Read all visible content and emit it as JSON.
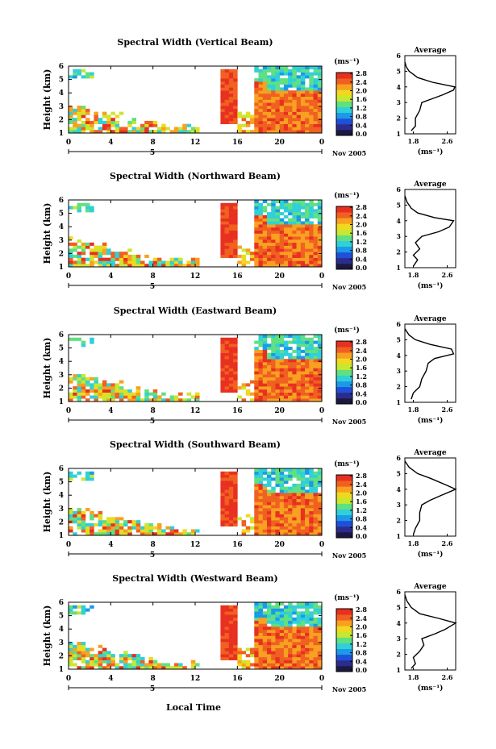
{
  "figure": {
    "colorbar_unit": "(ms⁻¹)",
    "avg_title": "Average",
    "avg_unit": "(ms⁻¹)",
    "date_label": "Nov 2005",
    "day_label": "5",
    "xlabel": "Local Time",
    "ylabel": "Height (km)"
  },
  "chart_data": [
    {
      "type": "heatmap",
      "title": "Spectral Width (Vertical Beam)",
      "ylabel": "Height (km)",
      "x_ticks": [
        "0",
        "4",
        "8",
        "12",
        "16",
        "20",
        "0"
      ],
      "xlim": [
        0,
        24
      ],
      "y_ticks": [
        "1",
        "2",
        "3",
        "4",
        "5",
        "6"
      ],
      "ylim": [
        1,
        6
      ],
      "colorbar": {
        "unit": "(ms⁻¹)",
        "ticks": [
          "0.0",
          "0.4",
          "0.8",
          "1.2",
          "1.6",
          "2.0",
          "2.4",
          "2.8"
        ],
        "range": [
          0,
          2.8
        ]
      },
      "average_profile": {
        "title": "Average",
        "x_ticks": [
          "1.8",
          "2.6"
        ],
        "xlim": [
          1.6,
          2.8
        ],
        "y_ticks": [
          "1",
          "2",
          "3",
          "4",
          "5",
          "6"
        ],
        "height": [
          1.2,
          1.5,
          2.0,
          2.5,
          3.0,
          3.3,
          3.5,
          3.8,
          4.0,
          4.3,
          4.6,
          5.0,
          5.3,
          5.6
        ],
        "value": [
          1.75,
          1.85,
          1.85,
          1.95,
          2.0,
          2.3,
          2.5,
          2.75,
          2.78,
          2.25,
          1.9,
          1.7,
          1.63,
          1.6
        ]
      }
    },
    {
      "type": "heatmap",
      "title": "Spectral Width (Northward Beam)",
      "ylabel": "Height (km)",
      "x_ticks": [
        "0",
        "4",
        "8",
        "12",
        "16",
        "20",
        "0"
      ],
      "xlim": [
        0,
        24
      ],
      "y_ticks": [
        "1",
        "2",
        "3",
        "4",
        "5",
        "6"
      ],
      "ylim": [
        1,
        6
      ],
      "colorbar": {
        "unit": "(ms⁻¹)",
        "ticks": [
          "0.0",
          "0.4",
          "0.8",
          "1.2",
          "1.6",
          "2.0",
          "2.4",
          "2.8"
        ],
        "range": [
          0,
          2.8
        ]
      },
      "average_profile": {
        "title": "Average",
        "x_ticks": [
          "1.8",
          "2.6"
        ],
        "xlim": [
          1.6,
          2.8
        ],
        "y_ticks": [
          "1",
          "2",
          "3",
          "4",
          "5",
          "6"
        ],
        "height": [
          1.1,
          1.5,
          1.8,
          2.2,
          2.6,
          3.0,
          3.3,
          3.6,
          4.0,
          4.2,
          4.5,
          4.8,
          5.2,
          5.6
        ],
        "value": [
          1.8,
          1.9,
          1.8,
          1.95,
          1.85,
          2.0,
          2.4,
          2.65,
          2.75,
          2.3,
          1.9,
          1.75,
          1.65,
          1.6
        ]
      }
    },
    {
      "type": "heatmap",
      "title": "Spectral Width (Eastward Beam)",
      "ylabel": "Height (km)",
      "x_ticks": [
        "0",
        "4",
        "8",
        "12",
        "16",
        "20",
        "0"
      ],
      "xlim": [
        0,
        24
      ],
      "y_ticks": [
        "1",
        "2",
        "3",
        "4",
        "5",
        "6"
      ],
      "ylim": [
        1,
        6
      ],
      "colorbar": {
        "unit": "(ms⁻¹)",
        "ticks": [
          "0.0",
          "0.4",
          "0.8",
          "1.2",
          "1.6",
          "2.0",
          "2.4",
          "2.8"
        ],
        "range": [
          0,
          2.8
        ]
      },
      "average_profile": {
        "title": "Average",
        "x_ticks": [
          "1.8",
          "2.6"
        ],
        "xlim": [
          1.6,
          2.8
        ],
        "y_ticks": [
          "1",
          "2",
          "3",
          "4",
          "5",
          "6"
        ],
        "height": [
          1.2,
          1.6,
          2.0,
          2.5,
          3.0,
          3.5,
          3.8,
          4.1,
          4.4,
          4.7,
          5.0,
          5.3,
          5.7
        ],
        "value": [
          1.75,
          1.8,
          1.95,
          2.0,
          2.1,
          2.15,
          2.3,
          2.75,
          2.7,
          2.2,
          1.85,
          1.7,
          1.6
        ]
      }
    },
    {
      "type": "heatmap",
      "title": "Spectral Width (Southward Beam)",
      "ylabel": "Height (km)",
      "x_ticks": [
        "0",
        "4",
        "8",
        "12",
        "16",
        "20",
        "0"
      ],
      "xlim": [
        0,
        24
      ],
      "y_ticks": [
        "1",
        "2",
        "3",
        "4",
        "5",
        "6"
      ],
      "ylim": [
        1,
        6
      ],
      "colorbar": {
        "unit": "(ms⁻¹)",
        "ticks": [
          "0.0",
          "0.4",
          "0.8",
          "1.2",
          "1.6",
          "2.0",
          "2.4",
          "2.8"
        ],
        "range": [
          0,
          2.8
        ]
      },
      "average_profile": {
        "title": "Average",
        "x_ticks": [
          "1.8",
          "2.6"
        ],
        "xlim": [
          1.6,
          2.8
        ],
        "y_ticks": [
          "1",
          "2",
          "3",
          "4",
          "5",
          "6"
        ],
        "height": [
          1.1,
          1.5,
          2.0,
          2.5,
          3.0,
          3.3,
          3.6,
          4.0,
          4.3,
          4.7,
          5.0,
          5.4,
          5.8
        ],
        "value": [
          1.8,
          1.85,
          1.95,
          1.95,
          2.0,
          2.2,
          2.45,
          2.8,
          2.55,
          2.2,
          1.9,
          1.7,
          1.6
        ]
      }
    },
    {
      "type": "heatmap",
      "title": "Spectral Width (Westward Beam)",
      "ylabel": "Height (km)",
      "xlabel": "Local Time",
      "x_ticks": [
        "0",
        "4",
        "8",
        "12",
        "16",
        "20",
        "0"
      ],
      "xlim": [
        0,
        24
      ],
      "y_ticks": [
        "1",
        "2",
        "3",
        "4",
        "5",
        "6"
      ],
      "ylim": [
        1,
        6
      ],
      "colorbar": {
        "unit": "(ms⁻¹)",
        "ticks": [
          "0.0",
          "0.4",
          "0.8",
          "1.2",
          "1.6",
          "2.0",
          "2.4",
          "2.8"
        ],
        "range": [
          0,
          2.8
        ]
      },
      "average_profile": {
        "title": "Average",
        "x_ticks": [
          "1.8",
          "2.6"
        ],
        "xlim": [
          1.6,
          2.8
        ],
        "y_ticks": [
          "1",
          "2",
          "3",
          "4",
          "5",
          "6"
        ],
        "height": [
          1.1,
          1.4,
          1.8,
          2.2,
          2.6,
          3.0,
          3.3,
          3.6,
          4.0,
          4.3,
          4.6,
          5.0,
          5.4,
          5.8
        ],
        "value": [
          1.75,
          1.85,
          1.8,
          1.95,
          2.05,
          2.0,
          2.3,
          2.55,
          2.8,
          2.4,
          1.95,
          1.75,
          1.65,
          1.6
        ]
      }
    }
  ],
  "colors": {
    "palette": [
      "#1a1a40",
      "#2c2c8c",
      "#2050d8",
      "#1a9ae8",
      "#30d0d8",
      "#60e080",
      "#c8e830",
      "#f0d820",
      "#f8a020",
      "#f06020",
      "#e83020"
    ]
  }
}
